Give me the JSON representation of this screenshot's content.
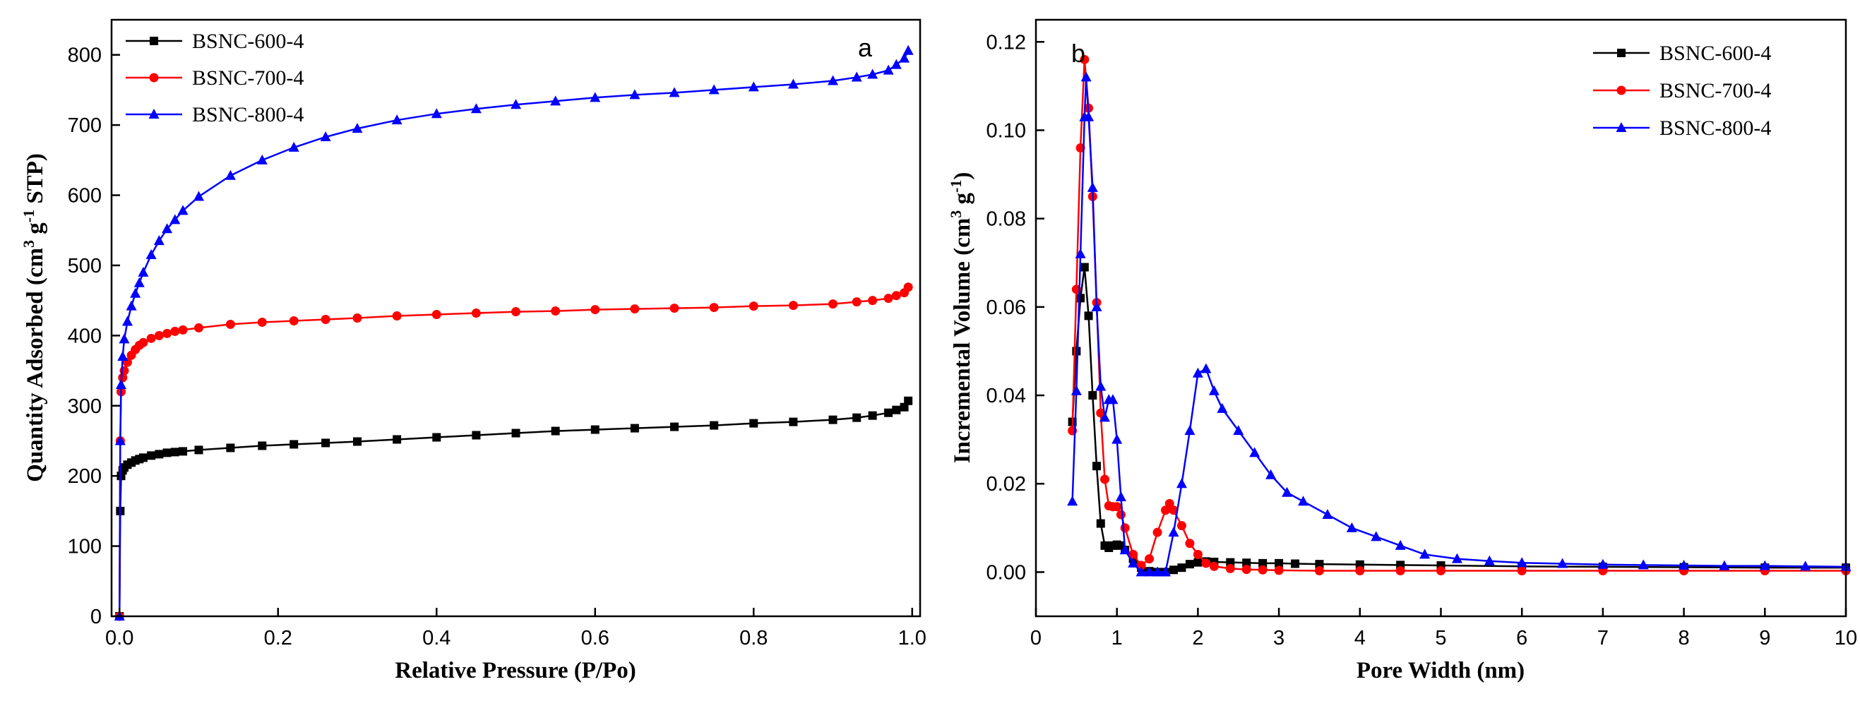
{
  "chart_data": [
    {
      "panel": "a",
      "type": "line",
      "xlabel": "Relative Pressure (P/Po)",
      "ylabel_parts": [
        "Quantity Adsorbed (cm",
        "3",
        " g",
        "-1",
        " STP)"
      ],
      "xlim": [
        -0.01,
        1.01
      ],
      "ylim": [
        0,
        850
      ],
      "xticks": [
        0.0,
        0.2,
        0.4,
        0.6,
        0.8,
        1.0
      ],
      "xtick_labels": [
        "0.0",
        "0.2",
        "0.4",
        "0.6",
        "0.8",
        "1.0"
      ],
      "yticks": [
        0,
        100,
        200,
        300,
        400,
        500,
        600,
        700,
        800
      ],
      "ytick_labels": [
        "0",
        "100",
        "200",
        "300",
        "400",
        "500",
        "600",
        "700",
        "800"
      ],
      "legend_position": "top-left",
      "series": [
        {
          "name": "BSNC-600-4",
          "color": "#000000",
          "marker": "square",
          "x": [
            0.0,
            0.001,
            0.002,
            0.004,
            0.006,
            0.01,
            0.015,
            0.02,
            0.025,
            0.03,
            0.04,
            0.05,
            0.06,
            0.07,
            0.08,
            0.1,
            0.14,
            0.18,
            0.22,
            0.26,
            0.3,
            0.35,
            0.4,
            0.45,
            0.5,
            0.55,
            0.6,
            0.65,
            0.7,
            0.75,
            0.8,
            0.85,
            0.9,
            0.93,
            0.95,
            0.97,
            0.98,
            0.99,
            0.995
          ],
          "y": [
            0,
            150,
            200,
            208,
            212,
            216,
            219,
            222,
            224,
            226,
            229,
            231,
            233,
            234,
            235,
            237,
            240,
            243,
            245,
            247,
            249,
            252,
            255,
            258,
            261,
            264,
            266,
            268,
            270,
            272,
            275,
            277,
            280,
            283,
            286,
            290,
            294,
            298,
            307
          ]
        },
        {
          "name": "BSNC-700-4",
          "color": "#ff0000",
          "marker": "circle",
          "x": [
            0.0,
            0.001,
            0.002,
            0.004,
            0.006,
            0.01,
            0.015,
            0.02,
            0.025,
            0.03,
            0.04,
            0.05,
            0.06,
            0.07,
            0.08,
            0.1,
            0.14,
            0.18,
            0.22,
            0.26,
            0.3,
            0.35,
            0.4,
            0.45,
            0.5,
            0.55,
            0.6,
            0.65,
            0.7,
            0.75,
            0.8,
            0.85,
            0.9,
            0.93,
            0.95,
            0.97,
            0.98,
            0.99,
            0.995
          ],
          "y": [
            0,
            250,
            320,
            340,
            350,
            362,
            372,
            380,
            386,
            390,
            396,
            400,
            403,
            406,
            408,
            411,
            416,
            419,
            421,
            423,
            425,
            428,
            430,
            432,
            434,
            435,
            437,
            438,
            439,
            440,
            442,
            443,
            445,
            448,
            450,
            453,
            457,
            461,
            469
          ]
        },
        {
          "name": "BSNC-800-4",
          "color": "#0000ff",
          "marker": "triangle",
          "x": [
            0.0,
            0.001,
            0.002,
            0.004,
            0.006,
            0.01,
            0.015,
            0.02,
            0.025,
            0.03,
            0.04,
            0.05,
            0.06,
            0.07,
            0.08,
            0.1,
            0.14,
            0.18,
            0.22,
            0.26,
            0.3,
            0.35,
            0.4,
            0.45,
            0.5,
            0.55,
            0.6,
            0.65,
            0.7,
            0.75,
            0.8,
            0.85,
            0.9,
            0.93,
            0.95,
            0.97,
            0.98,
            0.99,
            0.995
          ],
          "y": [
            0,
            250,
            330,
            370,
            395,
            420,
            442,
            460,
            475,
            490,
            515,
            535,
            552,
            565,
            578,
            598,
            628,
            650,
            668,
            683,
            695,
            707,
            716,
            723,
            729,
            734,
            739,
            743,
            746,
            750,
            754,
            758,
            763,
            768,
            772,
            778,
            786,
            795,
            806
          ]
        }
      ],
      "annotation": "a"
    },
    {
      "panel": "b",
      "type": "line",
      "xlabel": "Pore Width (nm)",
      "ylabel_parts": [
        "Incremental Volume (cm",
        "3",
        " g",
        "-1",
        ")"
      ],
      "xlim": [
        0,
        10
      ],
      "ylim": [
        -0.01,
        0.125
      ],
      "xticks": [
        0,
        1,
        2,
        3,
        4,
        5,
        6,
        7,
        8,
        9,
        10
      ],
      "xtick_labels": [
        "0",
        "1",
        "2",
        "3",
        "4",
        "5",
        "6",
        "7",
        "8",
        "9",
        "10"
      ],
      "yticks": [
        0.0,
        0.02,
        0.04,
        0.06,
        0.08,
        0.1,
        0.12
      ],
      "ytick_labels": [
        "0.00",
        "0.02",
        "0.04",
        "0.06",
        "0.08",
        "0.10",
        "0.12"
      ],
      "legend_position": "top-right",
      "series": [
        {
          "name": "BSNC-600-4",
          "color": "#000000",
          "marker": "square",
          "x": [
            0.45,
            0.5,
            0.55,
            0.6,
            0.65,
            0.7,
            0.75,
            0.8,
            0.85,
            0.9,
            0.95,
            1.0,
            1.05,
            1.1,
            1.2,
            1.3,
            1.4,
            1.5,
            1.6,
            1.7,
            1.8,
            1.9,
            2.0,
            2.1,
            2.2,
            2.4,
            2.6,
            2.8,
            3.0,
            3.2,
            3.5,
            4.0,
            4.5,
            5.0,
            6.0,
            7.0,
            8.0,
            9.0,
            10.0
          ],
          "y": [
            0.034,
            0.05,
            0.062,
            0.069,
            0.058,
            0.04,
            0.024,
            0.011,
            0.006,
            0.0055,
            0.006,
            0.0062,
            0.006,
            0.005,
            0.003,
            0.001,
            0.0002,
            0.0,
            0.0,
            0.0005,
            0.001,
            0.0018,
            0.0022,
            0.0024,
            0.0023,
            0.0022,
            0.0021,
            0.002,
            0.002,
            0.0019,
            0.0018,
            0.0017,
            0.0016,
            0.0015,
            0.0013,
            0.0012,
            0.0011,
            0.001,
            0.001
          ]
        },
        {
          "name": "BSNC-700-4",
          "color": "#ff0000",
          "marker": "circle",
          "x": [
            0.45,
            0.5,
            0.55,
            0.6,
            0.65,
            0.7,
            0.75,
            0.8,
            0.85,
            0.9,
            0.95,
            1.0,
            1.05,
            1.1,
            1.2,
            1.3,
            1.4,
            1.5,
            1.6,
            1.65,
            1.7,
            1.8,
            1.9,
            2.0,
            2.1,
            2.2,
            2.4,
            2.6,
            2.8,
            3.0,
            3.5,
            4.0,
            4.5,
            5.0,
            6.0,
            7.0,
            8.0,
            9.0,
            10.0
          ],
          "y": [
            0.032,
            0.064,
            0.096,
            0.116,
            0.105,
            0.085,
            0.061,
            0.036,
            0.021,
            0.015,
            0.0148,
            0.0148,
            0.013,
            0.01,
            0.004,
            0.0015,
            0.003,
            0.009,
            0.014,
            0.0155,
            0.014,
            0.0105,
            0.0065,
            0.004,
            0.002,
            0.0013,
            0.0008,
            0.0006,
            0.0005,
            0.0004,
            0.0003,
            0.0003,
            0.0003,
            0.0003,
            0.0003,
            0.0003,
            0.0003,
            0.0003,
            0.0003
          ]
        },
        {
          "name": "BSNC-800-4",
          "color": "#0000ff",
          "marker": "triangle",
          "x": [
            0.45,
            0.5,
            0.55,
            0.6,
            0.62,
            0.65,
            0.7,
            0.75,
            0.8,
            0.85,
            0.9,
            0.95,
            1.0,
            1.05,
            1.1,
            1.2,
            1.3,
            1.4,
            1.5,
            1.6,
            1.7,
            1.8,
            1.9,
            2.0,
            2.1,
            2.2,
            2.3,
            2.5,
            2.7,
            2.9,
            3.1,
            3.3,
            3.6,
            3.9,
            4.2,
            4.5,
            4.8,
            5.2,
            5.6,
            6.0,
            6.5,
            7.0,
            7.5,
            8.0,
            8.5,
            9.0,
            9.5,
            10.0
          ],
          "y": [
            0.016,
            0.041,
            0.072,
            0.103,
            0.112,
            0.103,
            0.087,
            0.06,
            0.042,
            0.035,
            0.039,
            0.039,
            0.03,
            0.017,
            0.005,
            0.002,
            0.0,
            0.0,
            0.0,
            0.0,
            0.009,
            0.02,
            0.032,
            0.045,
            0.046,
            0.041,
            0.037,
            0.032,
            0.027,
            0.022,
            0.018,
            0.016,
            0.013,
            0.01,
            0.008,
            0.006,
            0.004,
            0.003,
            0.0025,
            0.0021,
            0.0019,
            0.0017,
            0.0016,
            0.0015,
            0.0014,
            0.0014,
            0.0013,
            0.0012
          ]
        }
      ],
      "annotation": "b"
    }
  ]
}
